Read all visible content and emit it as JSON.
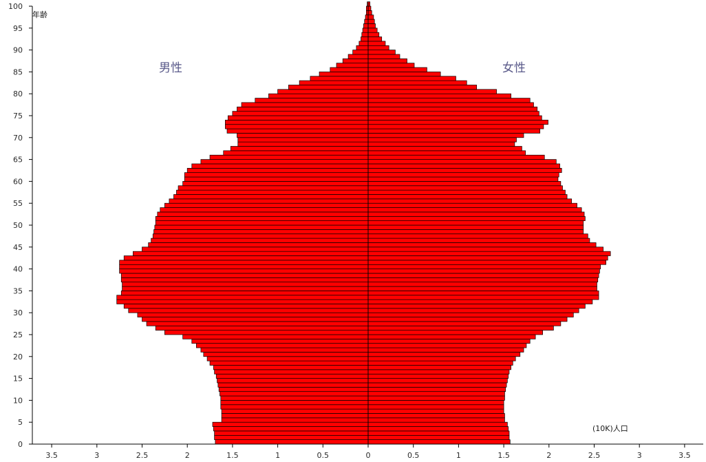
{
  "chart_data": {
    "type": "bar",
    "orientation": "horizontal",
    "ylabel": "年齢",
    "unit_label": "(10K)人口",
    "series": [
      {
        "name": "男性",
        "color": "#ff0000"
      },
      {
        "name": "女性",
        "color": "#ff0000"
      }
    ],
    "ages": [
      0,
      1,
      2,
      3,
      4,
      5,
      6,
      7,
      8,
      9,
      10,
      11,
      12,
      13,
      14,
      15,
      16,
      17,
      18,
      19,
      20,
      21,
      22,
      23,
      24,
      25,
      26,
      27,
      28,
      29,
      30,
      31,
      32,
      33,
      34,
      35,
      36,
      37,
      38,
      39,
      40,
      41,
      42,
      43,
      44,
      45,
      46,
      47,
      48,
      49,
      50,
      51,
      52,
      53,
      54,
      55,
      56,
      57,
      58,
      59,
      60,
      61,
      62,
      63,
      64,
      65,
      66,
      67,
      68,
      69,
      70,
      71,
      72,
      73,
      74,
      75,
      76,
      77,
      78,
      79,
      80,
      81,
      82,
      83,
      84,
      85,
      86,
      87,
      88,
      89,
      90,
      91,
      92,
      93,
      94,
      95,
      96,
      97,
      98,
      99,
      100
    ],
    "male": [
      1.69,
      1.7,
      1.7,
      1.71,
      1.72,
      1.62,
      1.62,
      1.62,
      1.63,
      1.63,
      1.63,
      1.64,
      1.65,
      1.66,
      1.67,
      1.68,
      1.7,
      1.71,
      1.75,
      1.78,
      1.82,
      1.85,
      1.9,
      1.95,
      2.05,
      2.25,
      2.35,
      2.45,
      2.5,
      2.55,
      2.65,
      2.7,
      2.78,
      2.78,
      2.73,
      2.72,
      2.72,
      2.73,
      2.73,
      2.75,
      2.75,
      2.75,
      2.7,
      2.6,
      2.5,
      2.43,
      2.4,
      2.38,
      2.37,
      2.36,
      2.35,
      2.35,
      2.33,
      2.3,
      2.25,
      2.2,
      2.15,
      2.12,
      2.1,
      2.05,
      2.03,
      2.03,
      2.0,
      1.95,
      1.85,
      1.75,
      1.6,
      1.52,
      1.44,
      1.44,
      1.45,
      1.56,
      1.58,
      1.58,
      1.55,
      1.5,
      1.45,
      1.4,
      1.25,
      1.1,
      1.0,
      0.88,
      0.76,
      0.64,
      0.54,
      0.42,
      0.35,
      0.28,
      0.22,
      0.17,
      0.13,
      0.1,
      0.08,
      0.07,
      0.06,
      0.05,
      0.04,
      0.03,
      0.02,
      0.02,
      0.01
    ],
    "female": [
      1.57,
      1.56,
      1.56,
      1.55,
      1.54,
      1.51,
      1.51,
      1.5,
      1.5,
      1.5,
      1.51,
      1.51,
      1.52,
      1.53,
      1.54,
      1.55,
      1.56,
      1.58,
      1.6,
      1.63,
      1.68,
      1.72,
      1.75,
      1.79,
      1.85,
      1.93,
      2.05,
      2.13,
      2.2,
      2.27,
      2.33,
      2.4,
      2.48,
      2.55,
      2.55,
      2.53,
      2.53,
      2.54,
      2.55,
      2.56,
      2.57,
      2.63,
      2.65,
      2.68,
      2.6,
      2.52,
      2.45,
      2.43,
      2.38,
      2.38,
      2.38,
      2.4,
      2.39,
      2.36,
      2.31,
      2.25,
      2.2,
      2.18,
      2.15,
      2.13,
      2.1,
      2.11,
      2.14,
      2.12,
      2.08,
      1.95,
      1.74,
      1.7,
      1.62,
      1.64,
      1.72,
      1.9,
      1.94,
      1.99,
      1.92,
      1.89,
      1.87,
      1.83,
      1.79,
      1.58,
      1.42,
      1.2,
      1.09,
      0.97,
      0.8,
      0.65,
      0.51,
      0.43,
      0.35,
      0.3,
      0.23,
      0.19,
      0.15,
      0.12,
      0.1,
      0.08,
      0.07,
      0.06,
      0.04,
      0.03,
      0.02
    ],
    "x_ticks": [
      "3.5",
      "3",
      "2.5",
      "2",
      "1.5",
      "1",
      "0.5",
      "0",
      "0.5",
      "1",
      "1.5",
      "2",
      "2.5",
      "3",
      "3.5"
    ],
    "y_ticks": [
      0,
      5,
      10,
      15,
      20,
      25,
      30,
      35,
      40,
      45,
      50,
      55,
      60,
      65,
      70,
      75,
      80,
      85,
      90,
      95,
      100
    ],
    "xlim": [
      -3.5,
      3.5
    ],
    "ylim": [
      0,
      100
    ],
    "grid": false
  }
}
